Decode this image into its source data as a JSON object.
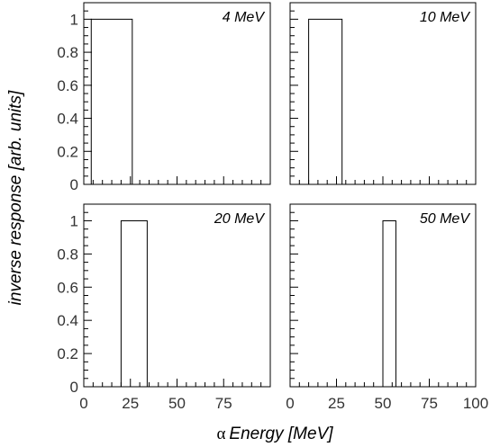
{
  "chart_data": {
    "type": "bar",
    "ylabel": "inverse response [arb. units]",
    "xlabel_symbol": "α",
    "xlabel_text": "Energy [MeV]",
    "yticks": [
      "0",
      "0.2",
      "0.4",
      "0.6",
      "0.8",
      "1"
    ],
    "xticks_left": [
      "0",
      "25",
      "50",
      "75"
    ],
    "xticks_right": [
      "0",
      "25",
      "50",
      "75",
      "100"
    ],
    "xlim": [
      0,
      100
    ],
    "ylim": [
      0,
      1.1
    ],
    "panels": [
      {
        "label": "4 MeV",
        "bin_start": 4,
        "bin_end": 26,
        "value": 1
      },
      {
        "label": "10 MeV",
        "bin_start": 10,
        "bin_end": 28,
        "value": 1
      },
      {
        "label": "20 MeV",
        "bin_start": 20,
        "bin_end": 34,
        "value": 1
      },
      {
        "label": "50 MeV",
        "bin_start": 50,
        "bin_end": 57,
        "value": 1
      }
    ]
  }
}
